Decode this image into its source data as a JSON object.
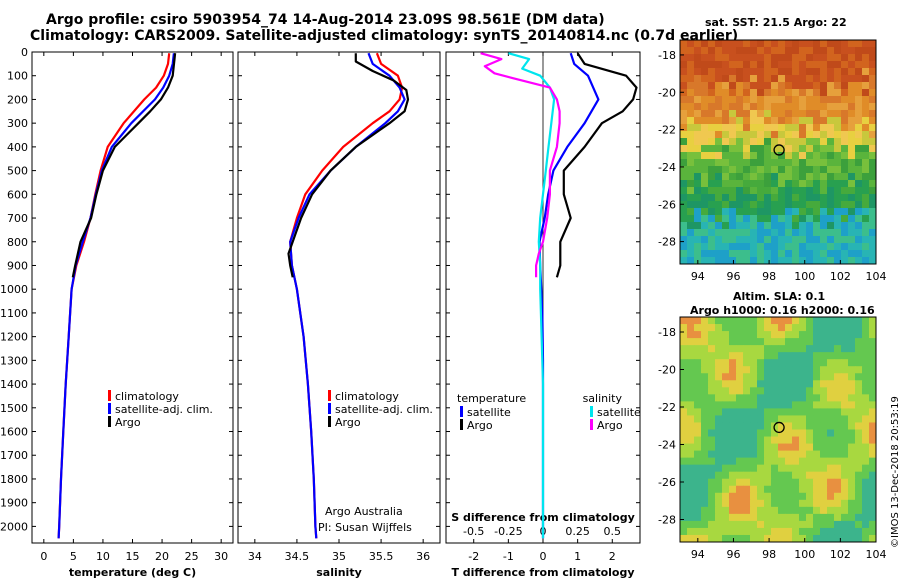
{
  "title_line1": "Argo profile: csiro 5903954_74 14-Aug-2014 23.09S 98.561E (DM data)",
  "title_line2": "Climatology: CARS2009. Satellite-adjusted climatology: synTS_20140814.nc (0.7d earlier)",
  "colors": {
    "climatology": "#ff0000",
    "satellite": "#0000ff",
    "argo": "#000000",
    "satellite_s": "#00e5ee",
    "argo_s": "#ff00ff"
  },
  "depth_ticks": [
    "0",
    "100",
    "200",
    "300",
    "400",
    "500",
    "600",
    "700",
    "800",
    "900",
    "1000",
    "1100",
    "1200",
    "1300",
    "1400",
    "1500",
    "1600",
    "1700",
    "1800",
    "1900",
    "2000"
  ],
  "chart_data": [
    {
      "type": "line",
      "xlabel": "temperature (deg C)",
      "xlim": [
        -2,
        32
      ],
      "ylim": [
        2070,
        0
      ],
      "xticks": [
        "0",
        "5",
        "10",
        "15",
        "20",
        "25",
        "30"
      ],
      "legend": [
        "climatology",
        "satellite-adj. clim.",
        "Argo"
      ],
      "series": [
        {
          "name": "climatology",
          "depth": [
            5,
            50,
            100,
            150,
            200,
            300,
            400,
            500,
            600,
            700,
            800,
            900,
            1000,
            1200,
            1400,
            1600,
            1800,
            2000,
            2050
          ],
          "values": [
            21.2,
            21.0,
            20.3,
            19.0,
            17.0,
            13.5,
            10.8,
            9.6,
            8.7,
            7.9,
            6.8,
            5.5,
            4.7,
            4.2,
            3.7,
            3.3,
            2.9,
            2.6,
            2.5
          ]
        },
        {
          "name": "satellite-adj. clim.",
          "depth": [
            5,
            50,
            100,
            150,
            200,
            300,
            400,
            500,
            600,
            700,
            800,
            900,
            1000,
            1200,
            1400,
            1600,
            1800,
            2000,
            2050
          ],
          "values": [
            22.0,
            21.8,
            21.2,
            20.2,
            18.8,
            14.8,
            11.5,
            9.8,
            8.8,
            7.9,
            6.6,
            5.4,
            4.7,
            4.2,
            3.7,
            3.3,
            2.9,
            2.6,
            2.5
          ]
        },
        {
          "name": "Argo",
          "depth": [
            5,
            30,
            100,
            150,
            200,
            250,
            300,
            350,
            400,
            500,
            600,
            700,
            800,
            900,
            950
          ],
          "values": [
            22.2,
            22.1,
            21.8,
            21.0,
            19.8,
            18.0,
            16.0,
            14.0,
            12.0,
            10.0,
            8.9,
            8.0,
            6.2,
            5.3,
            4.9
          ]
        }
      ]
    },
    {
      "type": "line",
      "xlabel": "salinity",
      "xlim": [
        33.8,
        36.2
      ],
      "ylim": [
        2070,
        0
      ],
      "xticks": [
        "34",
        "34.5",
        "35",
        "35.5",
        "36"
      ],
      "legend": [
        "climatology",
        "satellite-adj. clim.",
        "Argo"
      ],
      "series": [
        {
          "name": "climatology",
          "depth": [
            5,
            50,
            100,
            150,
            200,
            250,
            300,
            400,
            500,
            600,
            700,
            800,
            900,
            1000,
            1200,
            1400,
            1600,
            1800,
            2000,
            2050
          ],
          "values": [
            35.45,
            35.5,
            35.7,
            35.75,
            35.72,
            35.6,
            35.4,
            35.05,
            34.8,
            34.6,
            34.5,
            34.42,
            34.44,
            34.5,
            34.58,
            34.63,
            34.67,
            34.7,
            34.72,
            34.73
          ]
        },
        {
          "name": "satellite-adj. clim.",
          "depth": [
            5,
            50,
            100,
            150,
            200,
            250,
            300,
            400,
            500,
            600,
            700,
            800,
            900,
            1000,
            1200,
            1400,
            1600,
            1800,
            2000,
            2050
          ],
          "values": [
            35.35,
            35.4,
            35.6,
            35.72,
            35.78,
            35.7,
            35.55,
            35.2,
            34.9,
            34.65,
            34.52,
            34.42,
            34.44,
            34.5,
            34.58,
            34.63,
            34.67,
            34.7,
            34.72,
            34.73
          ]
        },
        {
          "name": "Argo",
          "depth": [
            5,
            40,
            80,
            120,
            160,
            200,
            250,
            300,
            350,
            400,
            500,
            600,
            700,
            800,
            850,
            900,
            950
          ],
          "values": [
            35.2,
            35.2,
            35.4,
            35.65,
            35.8,
            35.82,
            35.78,
            35.6,
            35.4,
            35.2,
            34.9,
            34.68,
            34.55,
            34.45,
            34.4,
            34.42,
            34.45
          ]
        }
      ]
    },
    {
      "type": "line",
      "xlabel": "T difference from climatology",
      "xlabel_top": "S difference from climatology",
      "xlim": [
        -2.8,
        2.8
      ],
      "ylim": [
        2070,
        0
      ],
      "xticks": [
        "-2",
        "-1",
        "0",
        "1",
        "2"
      ],
      "xticks_top": [
        "-0.5",
        "-0.25",
        "0",
        "0.25",
        "0.5"
      ],
      "legend_left": {
        "title": "temperature",
        "items": [
          "satellite",
          "Argo"
        ]
      },
      "legend_right": {
        "title": "salinity",
        "items": [
          "satellite",
          "Argo"
        ]
      },
      "series": [
        {
          "name": "temperature satellite",
          "depth": [
            5,
            50,
            100,
            200,
            250,
            300,
            400,
            500,
            600,
            700,
            800,
            900,
            1000,
            1100,
            1300,
            1500,
            1700,
            1900,
            2050
          ],
          "values": [
            0.8,
            0.9,
            1.3,
            1.6,
            1.4,
            1.2,
            0.7,
            0.3,
            0.15,
            0.05,
            -0.1,
            -0.08,
            -0.05,
            -0.02,
            0,
            0,
            0,
            0,
            0
          ]
        },
        {
          "name": "temperature Argo",
          "depth": [
            5,
            50,
            100,
            150,
            200,
            250,
            300,
            400,
            500,
            600,
            700,
            800,
            900,
            950
          ],
          "values": [
            1.0,
            1.2,
            2.4,
            2.7,
            2.6,
            2.3,
            1.7,
            1.2,
            0.6,
            0.6,
            0.8,
            0.5,
            0.5,
            0.4
          ]
        },
        {
          "name": "salinity satellite",
          "depth": [
            5,
            30,
            70,
            100,
            150,
            200,
            300,
            400,
            500,
            600,
            700,
            800,
            900,
            1000,
            1200,
            1400,
            1600,
            1800,
            2050
          ],
          "values": [
            -0.25,
            -0.1,
            -0.15,
            -0.02,
            0.05,
            0.08,
            0.06,
            0.04,
            0.02,
            0,
            -0.02,
            -0.03,
            -0.02,
            -0.02,
            -0.01,
            0,
            0,
            0,
            0
          ]
        },
        {
          "name": "salinity Argo",
          "depth": [
            5,
            30,
            60,
            90,
            110,
            150,
            200,
            250,
            300,
            400,
            500,
            600,
            700,
            800,
            850,
            900,
            950
          ],
          "values": [
            -0.45,
            -0.3,
            -0.42,
            -0.35,
            -0.22,
            0.05,
            0.1,
            0.12,
            0.12,
            0.1,
            0.05,
            0.05,
            0.03,
            0,
            -0.03,
            -0.05,
            -0.05
          ]
        }
      ]
    }
  ],
  "map_sst": {
    "title": "sat. SST: 21.5 Argo: 22",
    "yticks": [
      "-18",
      "-20",
      "-22",
      "-24",
      "-26",
      "-28"
    ],
    "xticks": [
      "94",
      "96",
      "98",
      "100",
      "102",
      "104"
    ]
  },
  "map_sla": {
    "title_line1": "Altim. SLA: 0.1",
    "title_line2": "Argo h1000: 0.16 h2000: 0.16",
    "yticks": [
      "-18",
      "-20",
      "-22",
      "-24",
      "-26",
      "-28"
    ],
    "xticks": [
      "94",
      "96",
      "98",
      "100",
      "102",
      "104"
    ]
  },
  "credit_line1": "Argo Australia",
  "credit_line2": "PI: Susan Wijffels",
  "stamp": "©IMOS 13-Dec-2018 20:53:19"
}
